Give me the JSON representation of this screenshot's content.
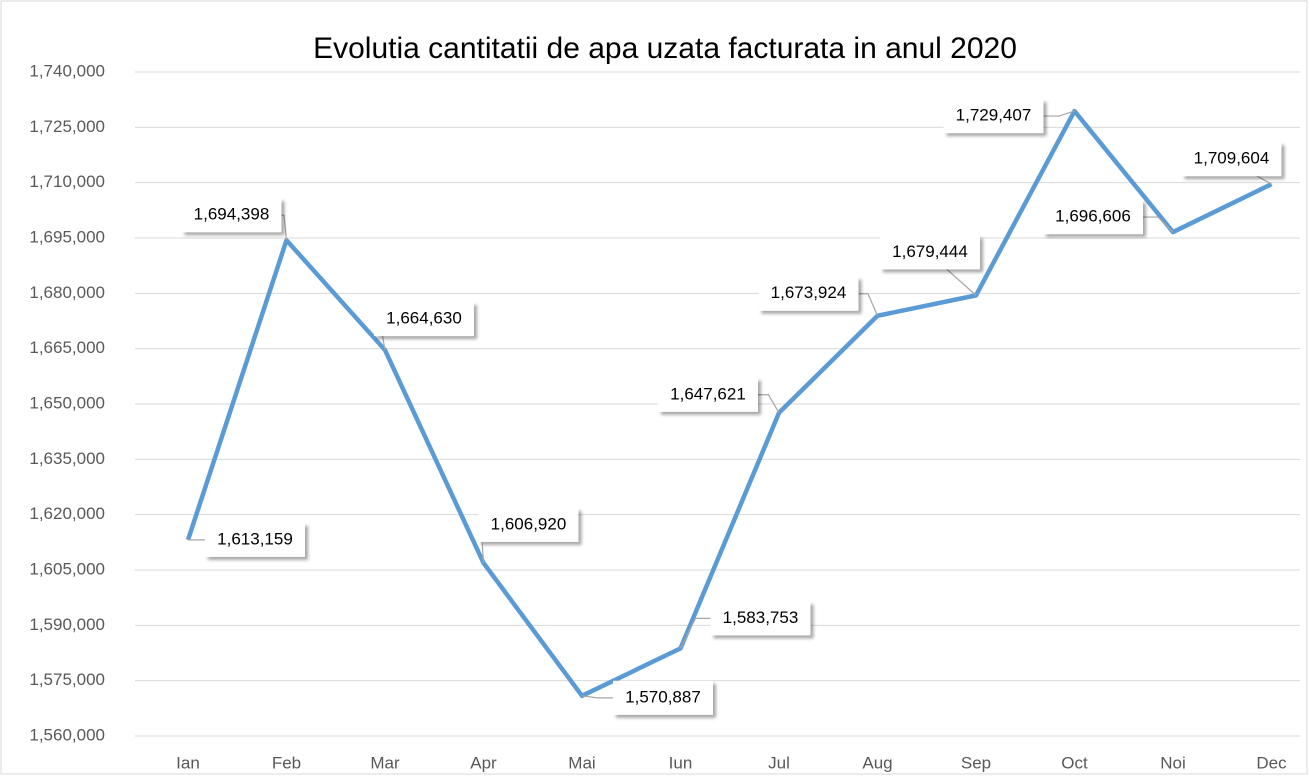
{
  "chart_data": {
    "type": "line",
    "title": "Evolutia cantitatii de apa uzata facturata in anul 2020",
    "categories": [
      "Ian",
      "Feb",
      "Mar",
      "Apr",
      "Mai",
      "Iun",
      "Jul",
      "Aug",
      "Sep",
      "Oct",
      "Noi",
      "Dec"
    ],
    "series": [
      {
        "name": "Cantitate",
        "color": "#5b9bd5",
        "values": [
          1613159,
          1694398,
          1664630,
          1606920,
          1570887,
          1583753,
          1647621,
          1673924,
          1679444,
          1729407,
          1696606,
          1709604
        ],
        "value_labels": [
          "1,613,159",
          "1,694,398",
          "1,664,630",
          "1,606,920",
          "1,570,887",
          "1,583,753",
          "1,647,621",
          "1,673,924",
          "1,679,444",
          "1,729,407",
          "1,696,606",
          "1,709,604"
        ]
      }
    ],
    "ylim": [
      1560000,
      1740000
    ],
    "yticks": [
      {
        "value": 1560000,
        "label": "1,560,000"
      },
      {
        "value": 1575000,
        "label": "1,575,000"
      },
      {
        "value": 1590000,
        "label": "1,590,000"
      },
      {
        "value": 1605000,
        "label": "1,605,000"
      },
      {
        "value": 1620000,
        "label": "1,620,000"
      },
      {
        "value": 1635000,
        "label": "1,635,000"
      },
      {
        "value": 1650000,
        "label": "1,650,000"
      },
      {
        "value": 1665000,
        "label": "1,665,000"
      },
      {
        "value": 1680000,
        "label": "1,680,000"
      },
      {
        "value": 1695000,
        "label": "1,695,000"
      },
      {
        "value": 1710000,
        "label": "1,710,000"
      },
      {
        "value": 1725000,
        "label": "1,725,000"
      },
      {
        "value": 1740000,
        "label": "1,740,000"
      }
    ],
    "grid": true
  }
}
